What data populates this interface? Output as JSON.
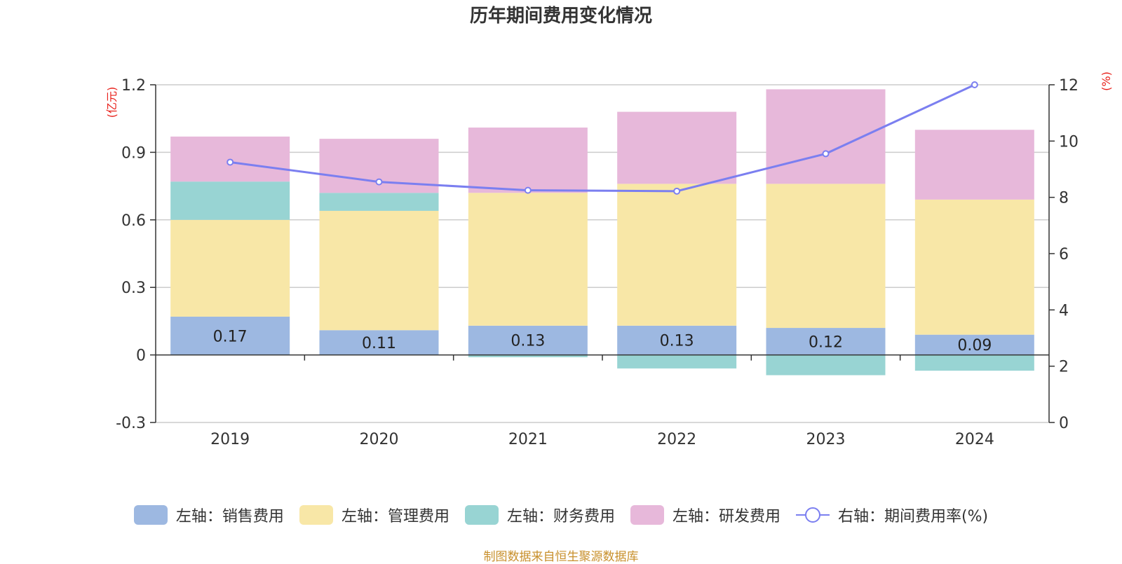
{
  "title": "历年期间费用变化情况",
  "source_note": "制图数据来自恒生聚源数据库",
  "colors": {
    "sales": "#9db8e1",
    "admin": "#f8e7a7",
    "finance": "#98d4d3",
    "rnd": "#e7b8da",
    "rate_line": "#7b7ff0",
    "axis_unit": "#e8201a",
    "grid": "#cccccc"
  },
  "legend": [
    {
      "label": "左轴：销售费用",
      "color": "#9db8e1",
      "kind": "bar"
    },
    {
      "label": "左轴：管理费用",
      "color": "#f8e7a7",
      "kind": "bar"
    },
    {
      "label": "左轴：财务费用",
      "color": "#98d4d3",
      "kind": "bar"
    },
    {
      "label": "左轴：研发费用",
      "color": "#e7b8da",
      "kind": "bar"
    },
    {
      "label": "右轴：期间费用率(%)",
      "color": "#7b7ff0",
      "kind": "line"
    }
  ],
  "chart_data": {
    "type": "bar",
    "stacked": true,
    "categories": [
      "2019",
      "2020",
      "2021",
      "2022",
      "2023",
      "2024"
    ],
    "series": [
      {
        "name": "左轴：销售费用",
        "axis": "left",
        "values": [
          0.17,
          0.11,
          0.13,
          0.13,
          0.12,
          0.09
        ],
        "data_labels": [
          "0.17",
          "0.11",
          "0.13",
          "0.13",
          "0.12",
          "0.09"
        ]
      },
      {
        "name": "左轴：管理费用",
        "axis": "left",
        "values": [
          0.43,
          0.53,
          0.59,
          0.63,
          0.64,
          0.6
        ]
      },
      {
        "name": "左轴：财务费用",
        "axis": "left",
        "values": [
          0.17,
          0.08,
          -0.01,
          -0.06,
          -0.09,
          -0.07
        ]
      },
      {
        "name": "左轴：研发费用",
        "axis": "left",
        "values": [
          0.2,
          0.24,
          0.29,
          0.32,
          0.42,
          0.31
        ]
      },
      {
        "name": "右轴：期间费用率(%)",
        "axis": "right",
        "type": "line",
        "values": [
          9.25,
          8.55,
          8.25,
          8.22,
          9.55,
          12.0
        ]
      }
    ],
    "left_axis": {
      "unit": "(亿元)",
      "ylim": [
        -0.3,
        1.2
      ],
      "ticks": [
        "1.2",
        "0.9",
        "0.6",
        "0.3",
        "0",
        "-0.3"
      ],
      "tick_values": [
        1.2,
        0.9,
        0.6,
        0.3,
        0,
        -0.3
      ]
    },
    "right_axis": {
      "unit": "(%)",
      "ylim": [
        0,
        12
      ],
      "ticks": [
        "12",
        "10",
        "8",
        "6",
        "4",
        "2",
        "0"
      ],
      "tick_values": [
        12,
        10,
        8,
        6,
        4,
        2,
        0
      ]
    },
    "grid": true,
    "legend_position": "bottom"
  }
}
